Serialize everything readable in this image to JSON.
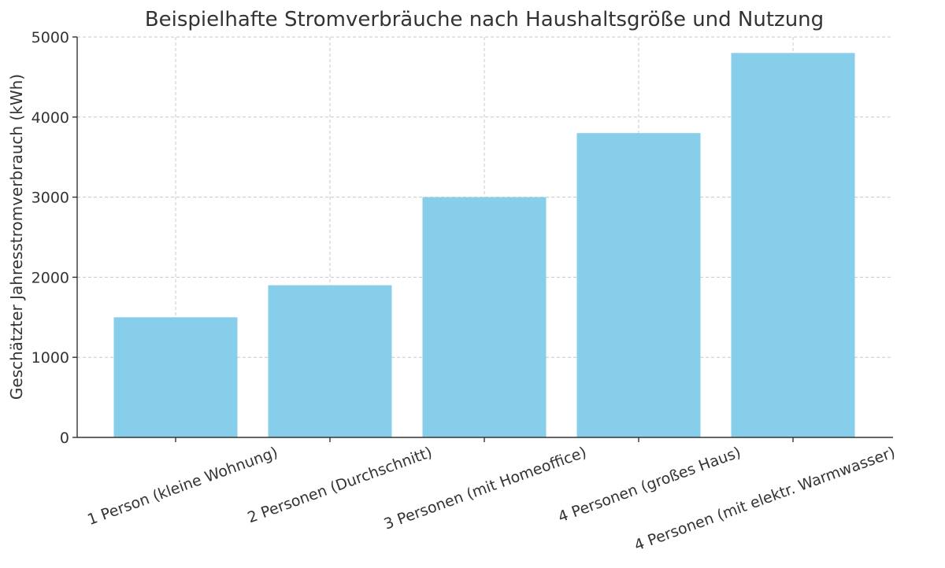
{
  "chart_data": {
    "type": "bar",
    "title": "Beispielhafte Stromverbräuche nach Haushaltsgröße und Nutzung",
    "xlabel": "",
    "ylabel": "Geschätzter Jahresstromverbrauch (kWh)",
    "categories": [
      "1 Person (kleine Wohnung)",
      "2 Personen (Durchschnitt)",
      "3 Personen (mit Homeoffice)",
      "4 Personen (großes Haus)",
      "4 Personen (mit elektr. Warmwasser)"
    ],
    "values": [
      1500,
      1900,
      3000,
      3800,
      4800
    ],
    "ylim": [
      0,
      5000
    ],
    "yticks": [
      0,
      1000,
      2000,
      3000,
      4000,
      5000
    ],
    "grid": true,
    "bar_color": "#87ceeb"
  }
}
